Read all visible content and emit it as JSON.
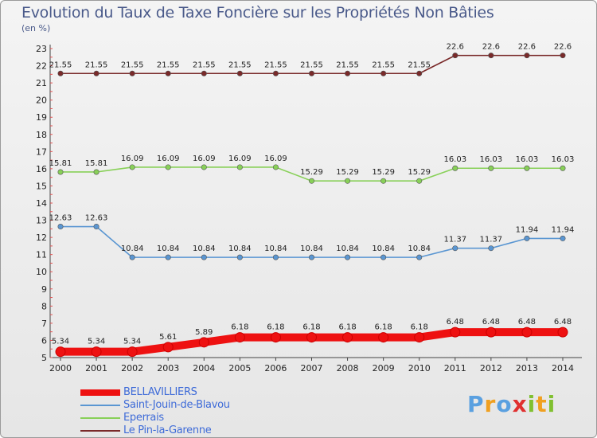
{
  "title": "Evolution du Taux de Taxe Foncière sur les Propriétés Non Bâties",
  "unit": "(en %)",
  "logo": {
    "text": "Proxiti",
    "letter_colors": [
      "#5aa0e0",
      "#f0a020",
      "#5aa0e0",
      "#e03030",
      "#80c030",
      "#f0a020",
      "#80c030"
    ]
  },
  "chart_data": {
    "type": "line",
    "title": "Evolution du Taux de Taxe Foncière sur les Propriétés Non Bâties",
    "ylabel": "(en %)",
    "xlabel": "",
    "ylim": [
      5,
      23
    ],
    "yticks": [
      5,
      6,
      7,
      8,
      9,
      10,
      11,
      12,
      13,
      14,
      15,
      16,
      17,
      18,
      19,
      20,
      21,
      22,
      23
    ],
    "grid": false,
    "legend_position": "bottom-left",
    "x": [
      "2000",
      "2001",
      "2002",
      "2003",
      "2004",
      "2005",
      "2006",
      "2007",
      "2008",
      "2009",
      "2010",
      "2011",
      "2012",
      "2013",
      "2014"
    ],
    "series": [
      {
        "name": "BELLAVILLIERS",
        "color": "#ee1111",
        "bold": true,
        "values": [
          5.34,
          5.34,
          5.34,
          5.61,
          5.89,
          6.18,
          6.18,
          6.18,
          6.18,
          6.18,
          6.18,
          6.48,
          6.48,
          6.48,
          6.48
        ],
        "labels": [
          "5.34",
          "5.34",
          "5.34",
          "5.61",
          "5.89",
          "6.18",
          "6.18",
          "6.18",
          "6.18",
          "6.18",
          "6.18",
          "6.48",
          "6.48",
          "6.48",
          "6.48"
        ]
      },
      {
        "name": "Saint-Jouin-de-Blavou",
        "color": "#5a96d2",
        "bold": false,
        "values": [
          12.63,
          12.63,
          10.84,
          10.84,
          10.84,
          10.84,
          10.84,
          10.84,
          10.84,
          10.84,
          10.84,
          11.37,
          11.37,
          11.94,
          11.94
        ],
        "labels": [
          "12.63",
          "12.63",
          "10.84",
          "10.84",
          "10.84",
          "10.84",
          "10.84",
          "10.84",
          "10.84",
          "10.84",
          "10.84",
          "11.37",
          "11.37",
          "11.94",
          "11.94"
        ]
      },
      {
        "name": "Eperrais",
        "color": "#88d058",
        "bold": false,
        "values": [
          15.81,
          15.81,
          16.09,
          16.09,
          16.09,
          16.09,
          16.09,
          15.29,
          15.29,
          15.29,
          15.29,
          16.03,
          16.03,
          16.03,
          16.03
        ],
        "labels": [
          "15.81",
          "15.81",
          "16.09",
          "16.09",
          "16.09",
          "16.09",
          "16.09",
          "15.29",
          "15.29",
          "15.29",
          "15.29",
          "16.03",
          "16.03",
          "16.03",
          "16.03"
        ]
      },
      {
        "name": "Le Pin-la-Garenne",
        "color": "#7a2a2a",
        "bold": false,
        "values": [
          21.55,
          21.55,
          21.55,
          21.55,
          21.55,
          21.55,
          21.55,
          21.55,
          21.55,
          21.55,
          21.55,
          22.6,
          22.6,
          22.6,
          22.6
        ],
        "labels": [
          "21.55",
          "21.55",
          "21.55",
          "21.55",
          "21.55",
          "21.55",
          "21.55",
          "21.55",
          "21.55",
          "21.55",
          "21.55",
          "22.6",
          "22.6",
          "22.6",
          "22.6"
        ]
      }
    ]
  }
}
